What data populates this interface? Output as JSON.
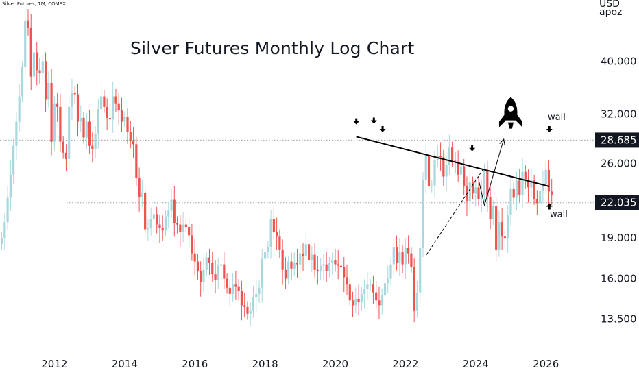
{
  "header": {
    "symbol_label": "Silver Futures, 1M, COMEX"
  },
  "title": "Silver Futures Monthly Log Chart",
  "axis": {
    "unit_line1": "USD",
    "unit_line2": "apoz"
  },
  "annotations": {
    "wall_top": "wall",
    "wall_bottom": "wall"
  },
  "colors": {
    "up": "#a8d8de",
    "down": "#ef5350",
    "grid": "#bbbbbb",
    "axis_text": "#131722",
    "badge_bg": "#131722",
    "badge_text": "#ffffff"
  },
  "chart_data": {
    "type": "candlestick",
    "title": "Silver Futures Monthly Log Chart",
    "scale": "log",
    "x_ticks": [
      "2012",
      "2014",
      "2016",
      "2018",
      "2020",
      "2022",
      "2024",
      "2026"
    ],
    "y_ticks": [
      13.5,
      16.0,
      19.0,
      22.035,
      26.0,
      28.685,
      32.0,
      40.0
    ],
    "y_tick_labels": [
      "13.500",
      "16.000",
      "19.000",
      "22.035",
      "26.000",
      "28.685",
      "32.000",
      "40.000"
    ],
    "highlighted_levels": [
      28.685,
      22.035
    ],
    "ylim": [
      11.8,
      50
    ],
    "xlim": [
      2010.45,
      2027.2
    ],
    "trendlines": [
      {
        "name": "resistance",
        "style": "solid",
        "from": [
          2020.6,
          29.1
        ],
        "to": [
          2026.1,
          23.6
        ]
      },
      {
        "name": "support",
        "style": "dashed",
        "from": [
          2022.6,
          17.7
        ],
        "to": [
          2024.2,
          25.3
        ]
      },
      {
        "name": "projection",
        "style": "arrow",
        "points": [
          [
            2024.1,
            24.0
          ],
          [
            2024.25,
            21.8
          ],
          [
            2024.8,
            28.8
          ]
        ]
      }
    ],
    "markers": [
      {
        "type": "down-arrow",
        "x": 2020.6,
        "y": 30.9
      },
      {
        "type": "down-arrow",
        "x": 2021.1,
        "y": 31.0
      },
      {
        "type": "down-arrow",
        "x": 2021.35,
        "y": 29.9
      },
      {
        "type": "down-arrow",
        "x": 2023.9,
        "y": 27.6
      },
      {
        "type": "down-arrow",
        "x": 2026.1,
        "y": 29.9
      },
      {
        "type": "up-arrow",
        "x": 2026.1,
        "y": 21.8
      },
      {
        "type": "rocket",
        "x": 2025.0,
        "y": 31.9
      }
    ],
    "closes": [
      19.0,
      20.3,
      22.5,
      24.8,
      28.0,
      31.0,
      34.5,
      39.0,
      47.5,
      46.0,
      37.5,
      41.5,
      38.5,
      38.0,
      40.0,
      34.0,
      36.5,
      28.5,
      33.5,
      33.0,
      28.5,
      27.2,
      26.5,
      33.0,
      35.0,
      34.8,
      31.0,
      31.5,
      29.0,
      31.0,
      28.0,
      27.6,
      29.5,
      32.7,
      34.5,
      33.0,
      31.5,
      31.3,
      34.5,
      33.5,
      32.5,
      31.0,
      31.6,
      29.7,
      28.6,
      28.2,
      24.5,
      22.6,
      23.0,
      19.7,
      19.8,
      20.6,
      21.0,
      20.1,
      19.8,
      19.6,
      20.8,
      21.3,
      22.3,
      20.2,
      20.1,
      19.5,
      20.1,
      19.9,
      19.2,
      17.8,
      17.2,
      16.5,
      15.8,
      16.6,
      17.5,
      17.1,
      16.3,
      15.9,
      16.9,
      17.0,
      16.0,
      15.4,
      15.0,
      15.6,
      15.5,
      15.2,
      14.3,
      14.2,
      13.8,
      14.0,
      14.8,
      15.0,
      15.4,
      17.4,
      17.9,
      18.3,
      20.6,
      19.5,
      19.1,
      18.1,
      16.6,
      16.0,
      17.2,
      16.7,
      17.1,
      17.0,
      17.8,
      17.6,
      18.5,
      17.3,
      17.7,
      16.6,
      16.5,
      16.9,
      17.0,
      16.5,
      17.1,
      17.3,
      17.0,
      16.9,
      16.8,
      16.1,
      15.6,
      14.6,
      14.3,
      14.7,
      14.5,
      15.0,
      15.3,
      15.6,
      15.6,
      15.1,
      14.6,
      14.3,
      14.9,
      15.7,
      16.0,
      17.0,
      18.3,
      17.1,
      17.9,
      17.0,
      18.2,
      17.8,
      16.8,
      14.0,
      15.1,
      18.2,
      24.3,
      26.9,
      23.6,
      23.7,
      26.4,
      26.8,
      26.7,
      24.6,
      25.8,
      27.8,
      26.3,
      26.2,
      24.8,
      25.7,
      23.6,
      22.2,
      24.0,
      22.9,
      23.5,
      22.4,
      22.8,
      25.2,
      22.6,
      20.6,
      21.7,
      18.1,
      20.3,
      19.1,
      19.0,
      20.9,
      23.4,
      22.5,
      24.2,
      22.8,
      25.1,
      24.3,
      23.5,
      24.2,
      22.4,
      22.0,
      23.2,
      23.8,
      25.3,
      23.1,
      22.8
    ]
  }
}
